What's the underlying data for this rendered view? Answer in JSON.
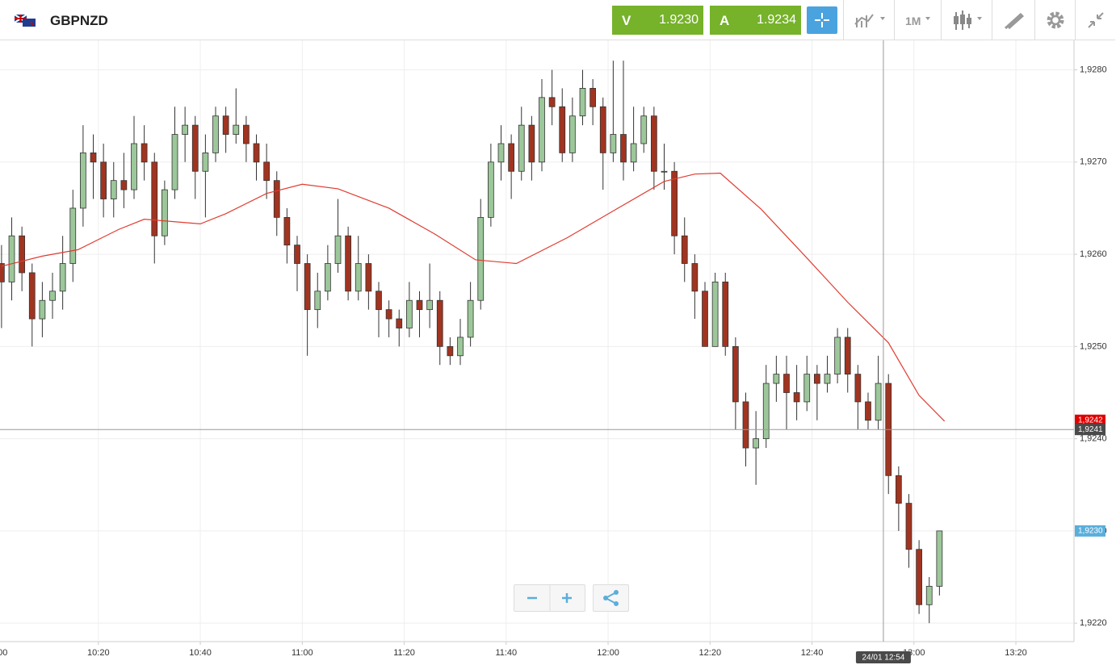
{
  "header": {
    "symbol": "GBPNZD",
    "sell_label": "V",
    "sell_price": "1.9230",
    "buy_label": "A",
    "buy_price": "1.9234",
    "timeframe": "1M"
  },
  "chart_data": {
    "type": "candlestick",
    "x": [
      1,
      3,
      5,
      7,
      9,
      11,
      13,
      15,
      17,
      19,
      21,
      23,
      25,
      27,
      29,
      31,
      33,
      35,
      37,
      39,
      41,
      43,
      45,
      47,
      49,
      51,
      53,
      55,
      57,
      59,
      61,
      63,
      65,
      67,
      69,
      71,
      73,
      75,
      77,
      79,
      81,
      83,
      85,
      87,
      89,
      91,
      93,
      95,
      97,
      99,
      101,
      103,
      105,
      107,
      109,
      111,
      113,
      115,
      117,
      119,
      121,
      123,
      125,
      127,
      129,
      131,
      133,
      135,
      137,
      139,
      141,
      143,
      145,
      147,
      149,
      151,
      153,
      155,
      157,
      159,
      161,
      163,
      165,
      167,
      169,
      171,
      173,
      175,
      177,
      179,
      181,
      183,
      185
    ],
    "ohlc": [
      [
        1.9259,
        1.9261,
        1.9252,
        1.9257
      ],
      [
        1.9257,
        1.9264,
        1.9255,
        1.9262
      ],
      [
        1.9262,
        1.9263,
        1.9256,
        1.9258
      ],
      [
        1.9258,
        1.9259,
        1.925,
        1.9253
      ],
      [
        1.9253,
        1.9257,
        1.9251,
        1.9255
      ],
      [
        1.9255,
        1.9258,
        1.9253,
        1.9256
      ],
      [
        1.9256,
        1.9262,
        1.9254,
        1.9259
      ],
      [
        1.9259,
        1.9267,
        1.9257,
        1.9265
      ],
      [
        1.9265,
        1.9274,
        1.9263,
        1.9271
      ],
      [
        1.9271,
        1.9273,
        1.9266,
        1.927
      ],
      [
        1.927,
        1.9272,
        1.9264,
        1.9266
      ],
      [
        1.9266,
        1.927,
        1.9264,
        1.9268
      ],
      [
        1.9268,
        1.9271,
        1.9265,
        1.9267
      ],
      [
        1.9267,
        1.9275,
        1.9266,
        1.9272
      ],
      [
        1.9272,
        1.9274,
        1.9268,
        1.927
      ],
      [
        1.927,
        1.9271,
        1.9259,
        1.9262
      ],
      [
        1.9262,
        1.9268,
        1.9261,
        1.9267
      ],
      [
        1.9267,
        1.9276,
        1.9266,
        1.9273
      ],
      [
        1.9273,
        1.9276,
        1.927,
        1.9274
      ],
      [
        1.9274,
        1.9275,
        1.9266,
        1.9269
      ],
      [
        1.9269,
        1.9273,
        1.9264,
        1.9271
      ],
      [
        1.9271,
        1.9276,
        1.927,
        1.9275
      ],
      [
        1.9275,
        1.9276,
        1.9271,
        1.9273
      ],
      [
        1.9273,
        1.9278,
        1.9272,
        1.9274
      ],
      [
        1.9274,
        1.9275,
        1.927,
        1.9272
      ],
      [
        1.9272,
        1.9273,
        1.9268,
        1.927
      ],
      [
        1.927,
        1.9272,
        1.9266,
        1.9268
      ],
      [
        1.9268,
        1.9269,
        1.9262,
        1.9264
      ],
      [
        1.9264,
        1.9265,
        1.9259,
        1.9261
      ],
      [
        1.9261,
        1.9262,
        1.9256,
        1.9259
      ],
      [
        1.9259,
        1.926,
        1.9249,
        1.9254
      ],
      [
        1.9254,
        1.9258,
        1.9252,
        1.9256
      ],
      [
        1.9256,
        1.9261,
        1.9255,
        1.9259
      ],
      [
        1.9259,
        1.9266,
        1.9258,
        1.9262
      ],
      [
        1.9262,
        1.9263,
        1.9255,
        1.9256
      ],
      [
        1.9256,
        1.9262,
        1.9255,
        1.9259
      ],
      [
        1.9259,
        1.926,
        1.9254,
        1.9256
      ],
      [
        1.9256,
        1.9257,
        1.9251,
        1.9254
      ],
      [
        1.9254,
        1.9255,
        1.9251,
        1.9253
      ],
      [
        1.9253,
        1.9254,
        1.925,
        1.9252
      ],
      [
        1.9252,
        1.9257,
        1.9251,
        1.9255
      ],
      [
        1.9255,
        1.9256,
        1.9251,
        1.9254
      ],
      [
        1.9254,
        1.9259,
        1.9252,
        1.9255
      ],
      [
        1.9255,
        1.9256,
        1.9248,
        1.925
      ],
      [
        1.925,
        1.9251,
        1.9248,
        1.9249
      ],
      [
        1.9249,
        1.9253,
        1.9248,
        1.9251
      ],
      [
        1.9251,
        1.9257,
        1.925,
        1.9255
      ],
      [
        1.9255,
        1.9266,
        1.9254,
        1.9264
      ],
      [
        1.9264,
        1.9272,
        1.9263,
        1.927
      ],
      [
        1.927,
        1.9274,
        1.9268,
        1.9272
      ],
      [
        1.9272,
        1.9273,
        1.9266,
        1.9269
      ],
      [
        1.9269,
        1.9276,
        1.9268,
        1.9274
      ],
      [
        1.9274,
        1.9275,
        1.9268,
        1.927
      ],
      [
        1.927,
        1.9279,
        1.9269,
        1.9277
      ],
      [
        1.9277,
        1.928,
        1.9274,
        1.9276
      ],
      [
        1.9276,
        1.9278,
        1.927,
        1.9271
      ],
      [
        1.9271,
        1.9277,
        1.927,
        1.9275
      ],
      [
        1.9275,
        1.928,
        1.9274,
        1.9278
      ],
      [
        1.9278,
        1.9279,
        1.9274,
        1.9276
      ],
      [
        1.9276,
        1.9277,
        1.9267,
        1.9271
      ],
      [
        1.9271,
        1.9281,
        1.927,
        1.9273
      ],
      [
        1.9273,
        1.9281,
        1.9268,
        1.927
      ],
      [
        1.927,
        1.9276,
        1.9269,
        1.9272
      ],
      [
        1.9272,
        1.9276,
        1.9271,
        1.9275
      ],
      [
        1.9275,
        1.9276,
        1.9267,
        1.9269
      ],
      [
        1.9269,
        1.9272,
        1.9267,
        1.9269
      ],
      [
        1.9269,
        1.927,
        1.926,
        1.9262
      ],
      [
        1.9262,
        1.9264,
        1.9257,
        1.9259
      ],
      [
        1.9259,
        1.926,
        1.9253,
        1.9256
      ],
      [
        1.9256,
        1.9257,
        1.925,
        1.925
      ],
      [
        1.925,
        1.9258,
        1.925,
        1.9257
      ],
      [
        1.9257,
        1.9258,
        1.9249,
        1.925
      ],
      [
        1.925,
        1.9251,
        1.9241,
        1.9244
      ],
      [
        1.9244,
        1.9245,
        1.9237,
        1.9239
      ],
      [
        1.9239,
        1.9243,
        1.9235,
        1.924
      ],
      [
        1.924,
        1.9248,
        1.9239,
        1.9246
      ],
      [
        1.9246,
        1.9249,
        1.9244,
        1.9247
      ],
      [
        1.9247,
        1.9249,
        1.9241,
        1.9245
      ],
      [
        1.9245,
        1.9248,
        1.9242,
        1.9244
      ],
      [
        1.9244,
        1.9249,
        1.9243,
        1.9247
      ],
      [
        1.9247,
        1.9248,
        1.9242,
        1.9246
      ],
      [
        1.9246,
        1.9249,
        1.9245,
        1.9247
      ],
      [
        1.9247,
        1.9252,
        1.9246,
        1.9251
      ],
      [
        1.9251,
        1.9252,
        1.9245,
        1.9247
      ],
      [
        1.9247,
        1.9248,
        1.9241,
        1.9244
      ],
      [
        1.9244,
        1.9245,
        1.9241,
        1.9242
      ],
      [
        1.9242,
        1.9249,
        1.9241,
        1.9246
      ],
      [
        1.9246,
        1.9247,
        1.9234,
        1.9236
      ],
      [
        1.9236,
        1.9237,
        1.923,
        1.9233
      ],
      [
        1.9233,
        1.9234,
        1.9226,
        1.9228
      ],
      [
        1.9228,
        1.9229,
        1.9221,
        1.9222
      ],
      [
        1.9222,
        1.9225,
        1.922,
        1.9224
      ],
      [
        1.9224,
        1.923,
        1.9223,
        1.923
      ]
    ],
    "up_color": "#9cc79a",
    "down_color": "#a13420",
    "ma": {
      "color": "#e03c31",
      "x": [
        1,
        9,
        16,
        24,
        29,
        40,
        45,
        53,
        60,
        67,
        77,
        86,
        94,
        102,
        112,
        121,
        131,
        137,
        142,
        150,
        159,
        167,
        175,
        181,
        186
      ],
      "values": [
        1.92587,
        1.92598,
        1.92605,
        1.92627,
        1.92638,
        1.92633,
        1.92644,
        1.92666,
        1.92676,
        1.92671,
        1.9265,
        1.92622,
        1.92594,
        1.9259,
        1.92618,
        1.92647,
        1.92679,
        1.92687,
        1.92688,
        1.92649,
        1.92596,
        1.92548,
        1.92504,
        1.92447,
        1.92419
      ]
    },
    "xlim": [
      0.7,
      211.4
    ],
    "ylim": [
      1.9218,
      1.92832
    ],
    "xticks": [
      {
        "value": 0,
        "label": "10:00"
      },
      {
        "value": 20,
        "label": "10:20"
      },
      {
        "value": 40,
        "label": "10:40"
      },
      {
        "value": 60,
        "label": "11:00"
      },
      {
        "value": 80,
        "label": "11:20"
      },
      {
        "value": 100,
        "label": "11:40"
      },
      {
        "value": 120,
        "label": "12:00"
      },
      {
        "value": 140,
        "label": "12:20"
      },
      {
        "value": 160,
        "label": "12:40"
      },
      {
        "value": 180,
        "label": "13:00"
      },
      {
        "value": 200,
        "label": "13:20"
      }
    ],
    "yticks": [
      {
        "value": 1.922,
        "label": "1,9220"
      },
      {
        "value": 1.923,
        "label": "1,9230"
      },
      {
        "value": 1.924,
        "label": "1,9240"
      },
      {
        "value": 1.925,
        "label": "1,9250"
      },
      {
        "value": 1.926,
        "label": "1,9260"
      },
      {
        "value": 1.927,
        "label": "1,9270"
      },
      {
        "value": 1.928,
        "label": "1,9280"
      }
    ],
    "grid": true,
    "price_markers": [
      {
        "value": 1.9242,
        "label": "1,9242",
        "color": "#e00000"
      },
      {
        "value": 1.9241,
        "label": "1,9241",
        "color": "#4a4a4a"
      },
      {
        "value": 1.923,
        "label": "1,9230",
        "color": "#5aaedb"
      }
    ],
    "crosshair": {
      "x": 174,
      "y": 1.9241,
      "label": "24/01 12:54"
    }
  }
}
